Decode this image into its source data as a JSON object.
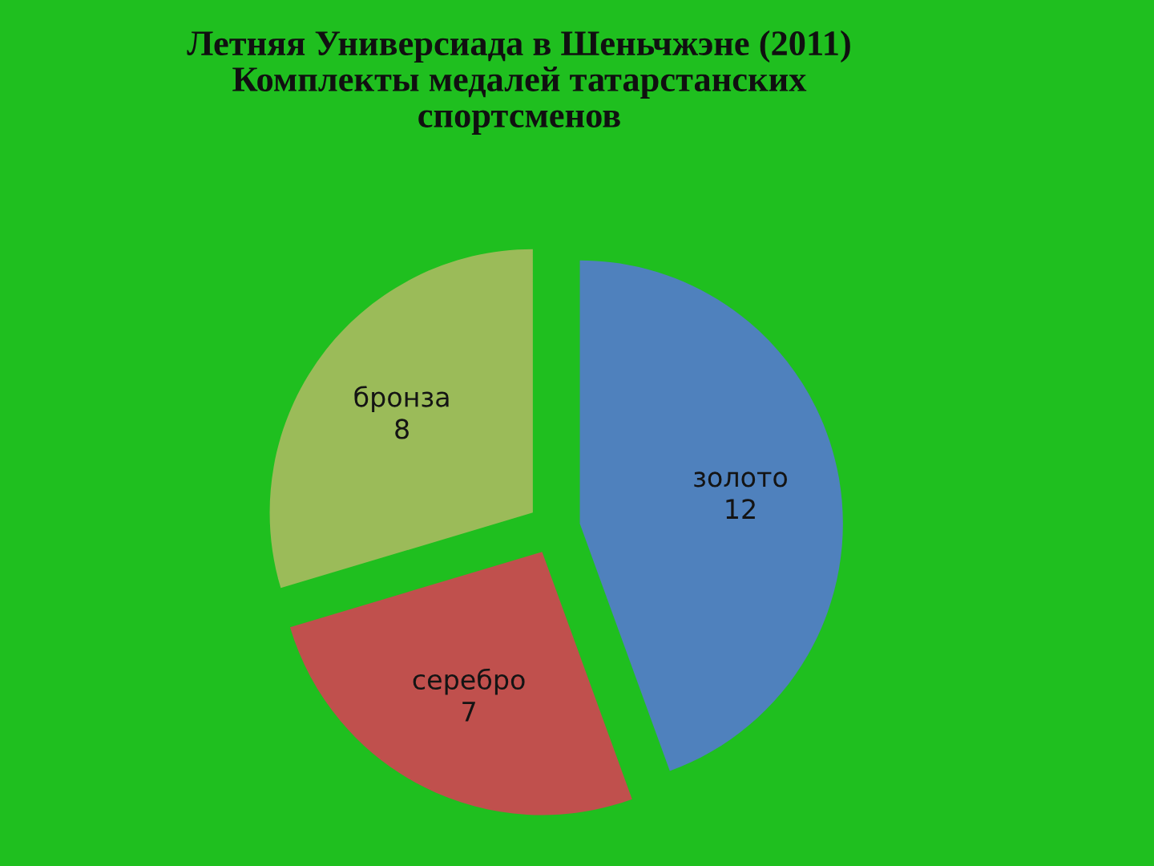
{
  "chart_data": {
    "type": "pie",
    "title": "Летняя Универсиада в Шеньчжэне (2011)\nКомплекты медалей татарстанских\nспортсменов",
    "categories": [
      "золото",
      "серебро",
      "бронза"
    ],
    "values": [
      12,
      7,
      8
    ],
    "colors": [
      "#4f81bd",
      "#c0504d",
      "#9bbb59"
    ],
    "data_labels": true
  }
}
